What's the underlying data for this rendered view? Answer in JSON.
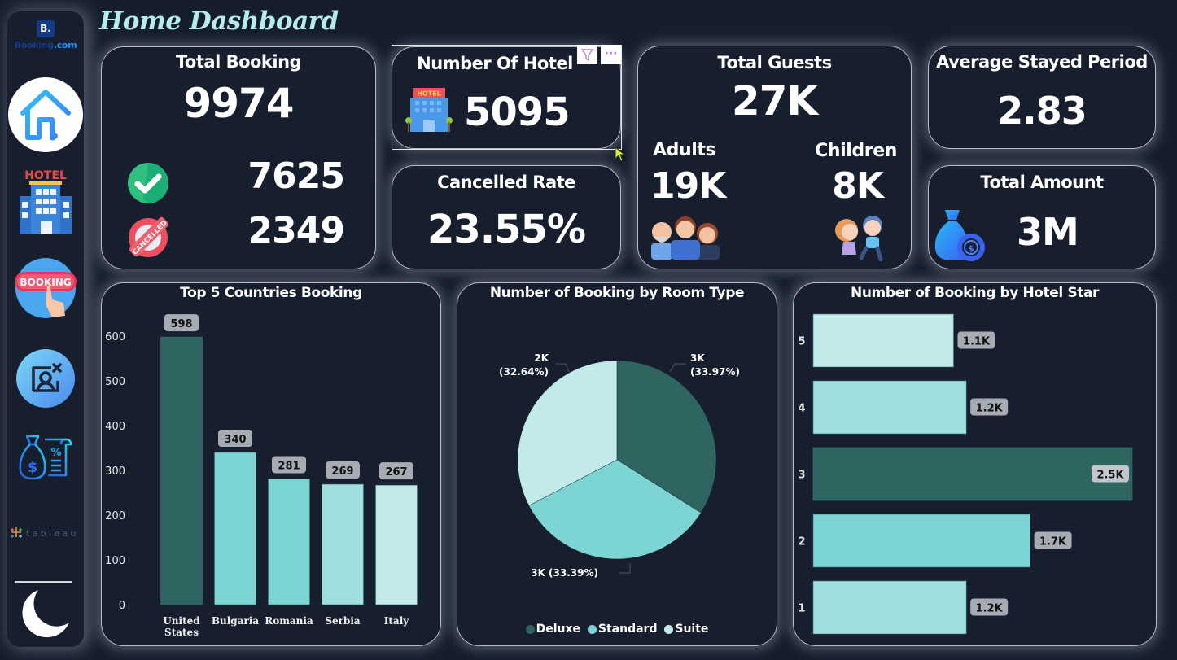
{
  "page": {
    "title": "Home Dashboard"
  },
  "sidebar": {
    "logo_letter": "B.",
    "logo_text_main": "Booking",
    "logo_text_suffix": ".com",
    "items": [
      {
        "name": "home",
        "icon": "home-icon"
      },
      {
        "name": "hotel",
        "icon": "hotel-icon",
        "label": "HOTEL"
      },
      {
        "name": "booking",
        "icon": "booking-icon",
        "label": "BOOKING"
      },
      {
        "name": "cancel",
        "icon": "user-cancel-icon"
      },
      {
        "name": "finance",
        "icon": "money-bag-receipt-icon"
      },
      {
        "name": "tableau",
        "icon": "tableau-logo",
        "label": "tableau"
      },
      {
        "name": "theme",
        "icon": "moon-icon"
      }
    ]
  },
  "kpis": {
    "total_booking": {
      "title": "Total Booking",
      "value": "9974",
      "confirmed": "7625",
      "cancelled": "2349",
      "cancelled_stamp": "CANCELLED"
    },
    "number_of_hotel": {
      "title": "Number Of Hotel",
      "value": "5095",
      "sign": "HOTEL"
    },
    "cancelled_rate": {
      "title": "Cancelled Rate",
      "value": "23.55%"
    },
    "total_guests": {
      "title": "Total Guests",
      "value": "27K",
      "adults_label": "Adults",
      "adults_value": "19K",
      "children_label": "Children",
      "children_value": "8K"
    },
    "avg_stay": {
      "title": "Average Stayed Period",
      "value": "2.83"
    },
    "total_amount": {
      "title": "Total Amount",
      "value": "3M"
    }
  },
  "visual_header": {
    "filter_icon": "filter-icon",
    "more_label": "···"
  },
  "chart_data": [
    {
      "type": "bar",
      "title": "Top 5 Countries Booking",
      "categories": [
        "United States",
        "Bulgaria",
        "Romania",
        "Serbia",
        "Italy"
      ],
      "category_lines": [
        [
          "United",
          "States"
        ],
        [
          "Bulgaria"
        ],
        [
          "Romania"
        ],
        [
          "Serbia"
        ],
        [
          "Italy"
        ]
      ],
      "values": [
        598,
        340,
        281,
        269,
        267
      ],
      "data_labels": [
        "598",
        "340",
        "281",
        "269",
        "267"
      ],
      "yticks": [
        0,
        100,
        200,
        300,
        400,
        500,
        600
      ],
      "ylim": [
        0,
        660
      ],
      "xlabel": "",
      "ylabel": "",
      "colors": [
        "#2e6560",
        "#7dd5d3",
        "#7dd5d3",
        "#9fe0de",
        "#c1eae9"
      ],
      "grid": false
    },
    {
      "type": "pie",
      "title": "Number of Booking by Room Type",
      "categories": [
        "Deluxe",
        "Standard",
        "Suite"
      ],
      "percent": [
        33.97,
        33.39,
        32.64
      ],
      "labels": [
        "3K (33.97%)",
        "3K (33.39%)",
        "2K (32.64%)"
      ],
      "label_value": [
        "3K",
        "3K",
        "2K"
      ],
      "label_pct": [
        "(33.97%)",
        "(33.39%)",
        "(32.64%)"
      ],
      "colors": [
        "#2e6560",
        "#7dd5d3",
        "#c1eae9"
      ],
      "legend": "bottom"
    },
    {
      "type": "bar",
      "orientation": "horizontal",
      "title": "Number of Booking by Hotel Star",
      "categories": [
        "5",
        "4",
        "3",
        "2",
        "1"
      ],
      "values": [
        1100,
        1200,
        2500,
        1700,
        1200
      ],
      "data_labels": [
        "1.1K",
        "1.2K",
        "2.5K",
        "1.7K",
        "1.2K"
      ],
      "xlim": [
        0,
        2500
      ],
      "colors": [
        "#c1eae9",
        "#9fe0de",
        "#2e6560",
        "#7dd5d3",
        "#9fe0de"
      ],
      "grid": false
    }
  ]
}
